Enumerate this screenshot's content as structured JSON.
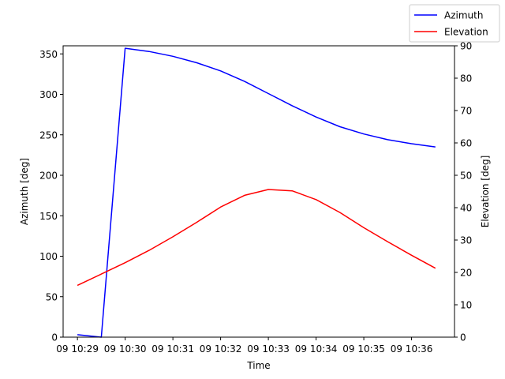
{
  "chart_data": {
    "type": "line",
    "xlabel": "Time",
    "ylabel_left": "Azimuth [deg]",
    "ylabel_right": "Elevation [deg]",
    "x_ticks": [
      "09 10:29",
      "09 10:30",
      "09 10:31",
      "09 10:32",
      "09 10:33",
      "09 10:34",
      "09 10:35",
      "09 10:36"
    ],
    "x_tick_minutes": [
      0,
      1,
      2,
      3,
      4,
      5,
      6,
      7
    ],
    "xlim_minutes": [
      -0.3,
      7.9
    ],
    "ylim_left": [
      0,
      360
    ],
    "yticks_left": [
      0,
      50,
      100,
      150,
      200,
      250,
      300,
      350
    ],
    "ylim_right": [
      0,
      90
    ],
    "yticks_right": [
      0,
      10,
      20,
      30,
      40,
      50,
      60,
      70,
      80,
      90
    ],
    "legend_position": "top-right, outside plot",
    "series": [
      {
        "name": "Azimuth",
        "color": "#0000ff",
        "axis": "left",
        "x_minutes": [
          0,
          0.5,
          1,
          1.5,
          2,
          2.5,
          3,
          3.5,
          4,
          4.5,
          5,
          5.5,
          6,
          6.5,
          7,
          7.5
        ],
        "values": [
          3,
          0,
          357,
          353,
          347,
          339,
          329,
          316,
          301,
          286,
          272,
          260,
          251,
          244,
          239,
          235
        ]
      },
      {
        "name": "Elevation",
        "color": "#ff0000",
        "axis": "right",
        "x_minutes": [
          0,
          0.5,
          1,
          1.5,
          2,
          2.5,
          3,
          3.5,
          4,
          4.5,
          5,
          5.5,
          6,
          6.5,
          7,
          7.5
        ],
        "values": [
          16,
          19.5,
          23,
          26.8,
          31,
          35.5,
          40.2,
          43.8,
          45.6,
          45.2,
          42.5,
          38.5,
          33.8,
          29.5,
          25.3,
          21.3
        ]
      }
    ]
  }
}
